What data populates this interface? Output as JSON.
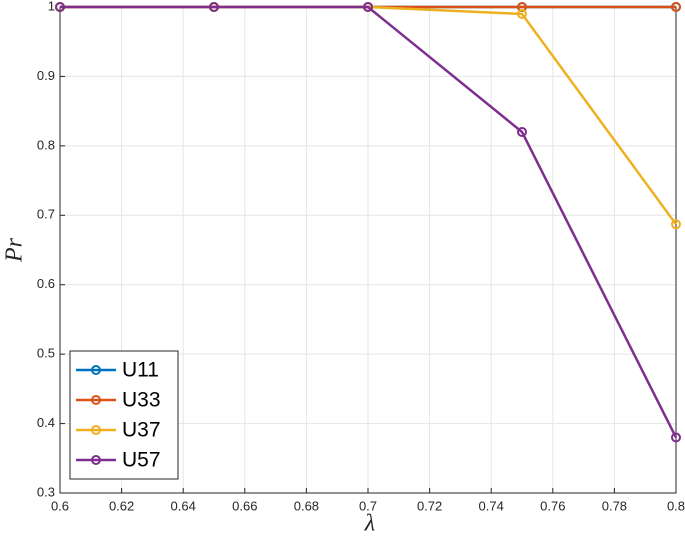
{
  "chart_data": {
    "type": "line",
    "xlabel": "λ",
    "ylabel": "Pr",
    "x": [
      0.6,
      0.65,
      0.7,
      0.75,
      0.8
    ],
    "series": [
      {
        "name": "U11",
        "color": "#0072BD",
        "values": [
          1,
          1,
          1,
          1,
          1
        ]
      },
      {
        "name": "U33",
        "color": "#D95319",
        "values": [
          1,
          1,
          1,
          1,
          1
        ]
      },
      {
        "name": "U37",
        "color": "#EDB120",
        "values": [
          1,
          1,
          1,
          0.99,
          0.687
        ]
      },
      {
        "name": "U57",
        "color": "#7E2F8E",
        "values": [
          1,
          1,
          1,
          0.82,
          0.38
        ]
      }
    ],
    "xlim": [
      0.6,
      0.8
    ],
    "xticks": [
      0.6,
      0.62,
      0.64,
      0.66,
      0.68,
      0.7,
      0.72,
      0.74,
      0.76,
      0.78,
      0.8
    ],
    "ylim": [
      0.3,
      1
    ],
    "yticks": [
      0.3,
      0.4,
      0.5,
      0.6,
      0.7,
      0.8,
      0.9,
      1
    ],
    "grid": true,
    "legend": "lower-left",
    "marker": "circle"
  }
}
